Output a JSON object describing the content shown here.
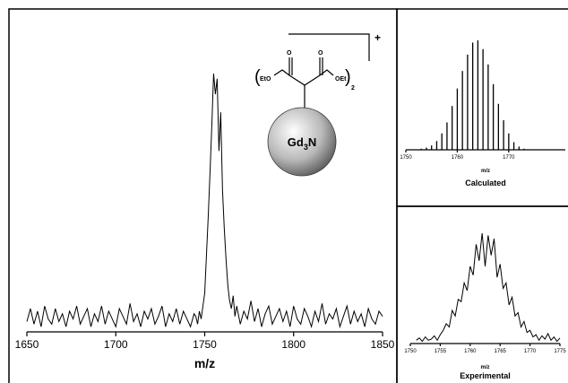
{
  "chart_data": [
    {
      "type": "line",
      "xlabel": "m/z",
      "color": "#000000",
      "x": [
        1650,
        1652,
        1654,
        1656,
        1658,
        1660,
        1662,
        1664,
        1666,
        1668,
        1670,
        1672,
        1674,
        1676,
        1678,
        1680,
        1682,
        1684,
        1686,
        1688,
        1690,
        1692,
        1694,
        1696,
        1698,
        1700,
        1702,
        1704,
        1706,
        1708,
        1710,
        1712,
        1714,
        1716,
        1718,
        1720,
        1722,
        1724,
        1726,
        1728,
        1730,
        1732,
        1734,
        1736,
        1738,
        1740,
        1742,
        1744,
        1745,
        1746,
        1747,
        1748,
        1749,
        1750,
        1751,
        1752,
        1753,
        1754,
        1755,
        1756,
        1757,
        1758,
        1759,
        1760,
        1761,
        1762,
        1763,
        1764,
        1765,
        1766,
        1767,
        1768,
        1770,
        1772,
        1774,
        1776,
        1778,
        1780,
        1782,
        1784,
        1786,
        1788,
        1790,
        1792,
        1794,
        1796,
        1798,
        1800,
        1802,
        1804,
        1806,
        1808,
        1810,
        1812,
        1814,
        1816,
        1818,
        1820,
        1822,
        1824,
        1826,
        1828,
        1830,
        1832,
        1834,
        1836,
        1838,
        1840,
        1842,
        1844,
        1846,
        1848,
        1850
      ],
      "values": [
        4,
        9,
        3,
        8,
        2,
        10,
        5,
        3,
        9,
        4,
        7,
        2,
        8,
        5,
        10,
        3,
        6,
        9,
        2,
        7,
        4,
        10,
        3,
        8,
        5,
        2,
        9,
        6,
        3,
        11,
        4,
        7,
        2,
        8,
        5,
        9,
        3,
        6,
        10,
        2,
        7,
        4,
        9,
        3,
        8,
        5,
        2,
        7,
        6,
        3,
        8,
        5,
        10,
        15,
        30,
        45,
        62,
        80,
        100,
        92,
        98,
        70,
        85,
        55,
        40,
        28,
        18,
        12,
        9,
        14,
        6,
        10,
        3,
        8,
        5,
        12,
        4,
        9,
        2,
        7,
        10,
        3,
        6,
        9,
        4,
        8,
        2,
        10,
        5,
        3,
        9,
        6,
        2,
        8,
        4,
        11,
        3,
        7,
        5,
        9,
        2,
        6,
        10,
        3,
        8,
        4,
        7,
        2,
        9,
        5,
        3,
        8,
        6
      ],
      "xlim": [
        1650,
        1850
      ],
      "xticks": [
        1650,
        1700,
        1750,
        1800,
        1850
      ],
      "ylim": [
        0,
        100
      ],
      "structure": {
        "left_group": "EtO",
        "right_group": "OEt",
        "oxygen": "O",
        "count": "2",
        "charge": "+",
        "core": "Gd",
        "core_sub": "3",
        "core_end": "N"
      }
    },
    {
      "type": "stick",
      "title": "Calculated",
      "xlabel": "m/z",
      "color": "#000000",
      "x": [
        1753,
        1754,
        1755,
        1756,
        1757,
        1758,
        1759,
        1760,
        1761,
        1762,
        1763,
        1764,
        1765,
        1766,
        1767,
        1768,
        1769,
        1770,
        1771,
        1772,
        1773
      ],
      "values": [
        1,
        2,
        4,
        8,
        15,
        25,
        40,
        56,
        72,
        87,
        98,
        100,
        92,
        78,
        60,
        42,
        27,
        15,
        7,
        3,
        1
      ],
      "xlim": [
        1750,
        1781
      ],
      "xticks": [
        1750,
        1760,
        1770
      ],
      "ylim": [
        0,
        100
      ]
    },
    {
      "type": "line",
      "title": "Experimental",
      "xlabel": "m/z",
      "color": "#000000",
      "x": [
        1751,
        1751.5,
        1752,
        1752.5,
        1753,
        1753.5,
        1754,
        1754.5,
        1755,
        1755.5,
        1756,
        1756.5,
        1757,
        1757.5,
        1758,
        1758.5,
        1759,
        1759.5,
        1760,
        1760.5,
        1761,
        1761.5,
        1762,
        1762.5,
        1763,
        1763.5,
        1764,
        1764.5,
        1765,
        1765.5,
        1766,
        1766.5,
        1767,
        1767.5,
        1768,
        1768.5,
        1769,
        1769.5,
        1770,
        1770.5,
        1771,
        1771.5,
        1772,
        1772.5,
        1773,
        1773.5,
        1774,
        1774.5,
        1775
      ],
      "values": [
        3,
        5,
        2,
        6,
        3,
        4,
        7,
        3,
        8,
        12,
        18,
        15,
        30,
        25,
        40,
        38,
        55,
        48,
        70,
        62,
        90,
        75,
        100,
        70,
        98,
        80,
        95,
        60,
        72,
        50,
        55,
        35,
        42,
        25,
        28,
        15,
        20,
        10,
        12,
        6,
        8,
        3,
        7,
        4,
        9,
        3,
        6,
        2,
        5
      ],
      "xlim": [
        1750,
        1775
      ],
      "xticks": [
        1750,
        1755,
        1760,
        1765,
        1770,
        1775
      ],
      "ylim": [
        0,
        100
      ]
    }
  ]
}
